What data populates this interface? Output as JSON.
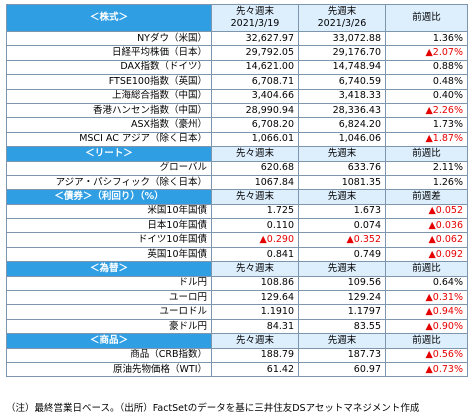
{
  "sections": [
    {
      "title": "＜株式＞",
      "columns": [
        "先々週末\n2021/3/19",
        "先週末\n2021/3/26",
        "前週比"
      ],
      "rows": [
        {
          "label": "NYダウ（米国）",
          "v1": "32,627.97",
          "v2": "33,072.88",
          "chg": "1.36%",
          "neg": false
        },
        {
          "label": "日経平均株価（日本）",
          "v1": "29,792.05",
          "v2": "29,176.70",
          "chg": "▲2.07%",
          "neg": true
        },
        {
          "label": "DAX指数（ドイツ）",
          "v1": "14,621.00",
          "v2": "14,748.94",
          "chg": "0.88%",
          "neg": false
        },
        {
          "label": "FTSE100指数（英国）",
          "v1": "6,708.71",
          "v2": "6,740.59",
          "chg": "0.48%",
          "neg": false
        },
        {
          "label": "上海総合指数（中国）",
          "v1": "3,404.66",
          "v2": "3,418.33",
          "chg": "0.40%",
          "neg": false
        },
        {
          "label": "香港ハンセン指数（中国）",
          "v1": "28,990.94",
          "v2": "28,336.43",
          "chg": "▲2.26%",
          "neg": true
        },
        {
          "label": "ASX指数（豪州）",
          "v1": "6,708.20",
          "v2": "6,824.20",
          "chg": "1.73%",
          "neg": false
        },
        {
          "label": "MSCI AC アジア（除く日本）",
          "v1": "1,066.01",
          "v2": "1,046.06",
          "chg": "▲1.87%",
          "neg": true
        }
      ]
    },
    {
      "title": "＜リート＞",
      "columns": [
        "先々週末",
        "先週末",
        "前週比"
      ],
      "rows": [
        {
          "label": "グローバル",
          "v1": "620.68",
          "v2": "633.76",
          "chg": "2.11%",
          "neg": false
        },
        {
          "label": "アジア・パシフィック（除く日本）",
          "v1": "1067.84",
          "v2": "1081.35",
          "chg": "1.26%",
          "neg": false
        }
      ]
    },
    {
      "title": "＜債券＞（利回り）（%）",
      "columns": [
        "先々週末",
        "先週末",
        "前週差"
      ],
      "rows": [
        {
          "label": "米国10年国債",
          "v1": "1.725",
          "v2": "1.673",
          "chg": "▲0.052",
          "neg": true
        },
        {
          "label": "日本10年国債",
          "v1": "0.110",
          "v2": "0.074",
          "chg": "▲0.036",
          "neg": true
        },
        {
          "label": "ドイツ10年国債",
          "v1": "▲0.290",
          "v2": "▲0.352",
          "chg": "▲0.062",
          "neg": true,
          "neg_v": true
        },
        {
          "label": "英国10年国債",
          "v1": "0.841",
          "v2": "0.749",
          "chg": "▲0.092",
          "neg": true
        }
      ]
    },
    {
      "title": "＜為替＞",
      "columns": [
        "先々週末",
        "先週末",
        "前週比"
      ],
      "rows": [
        {
          "label": "ドル円",
          "v1": "108.86",
          "v2": "109.56",
          "chg": "0.64%",
          "neg": false
        },
        {
          "label": "ユーロ円",
          "v1": "129.64",
          "v2": "129.24",
          "chg": "▲0.31%",
          "neg": true
        },
        {
          "label": "ユーロドル",
          "v1": "1.1910",
          "v2": "1.1797",
          "chg": "▲0.94%",
          "neg": true
        },
        {
          "label": "豪ドル円",
          "v1": "84.31",
          "v2": "83.55",
          "chg": "▲0.90%",
          "neg": true
        }
      ]
    },
    {
      "title": "＜商品＞",
      "columns": [
        "先々週末",
        "先週末",
        "前週比"
      ],
      "rows": [
        {
          "label": "商品（CRB指数）",
          "v1": "188.79",
          "v2": "187.73",
          "chg": "▲0.56%",
          "neg": true
        },
        {
          "label": "原油先物価格（WTI）",
          "v1": "61.42",
          "v2": "60.97",
          "chg": "▲0.73%",
          "neg": true
        }
      ]
    }
  ],
  "footnote": "（注）最終営業日ベース。（出所）FactSetのデータを基に三井住友DSアセットマネジメント作成",
  "colors": {
    "header_fill": "#2f9ee3",
    "column_fill": "#ddeefd",
    "negative": "#e60000",
    "border": "#7d96ad"
  }
}
